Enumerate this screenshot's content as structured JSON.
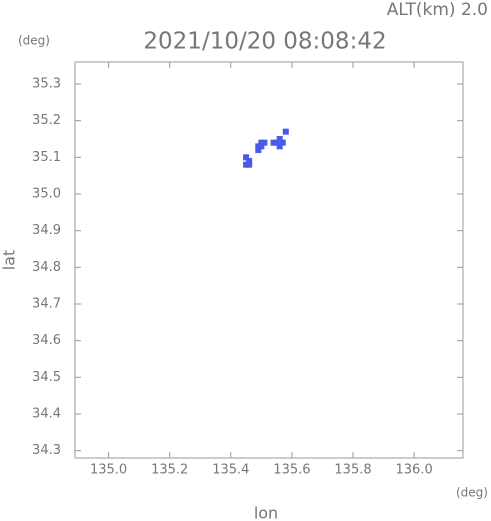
{
  "chart_data": {
    "type": "scatter",
    "title": "2021/10/20 08:08:42",
    "subtitle": "ALT(km) 2.0",
    "x_unit": "(deg)",
    "y_unit": "(deg)",
    "x_label": "lon",
    "y_label": "lat",
    "x": [
      135.45,
      135.46,
      135.45,
      135.46,
      135.49,
      135.5,
      135.51,
      135.5,
      135.49,
      135.54,
      135.55,
      135.56,
      135.57,
      135.56,
      135.58
    ],
    "y": [
      35.08,
      35.09,
      35.1,
      35.08,
      35.12,
      35.13,
      35.14,
      35.14,
      35.13,
      35.14,
      35.14,
      35.13,
      35.14,
      35.15,
      35.17
    ],
    "color": "#4a5ae6",
    "xlim": [
      134.89,
      136.16
    ],
    "ylim": [
      34.28,
      35.36
    ],
    "xticks": [
      {
        "value": 135.0,
        "label": "135.0"
      },
      135.2,
      135.4,
      135.6,
      135.8,
      {
        "value": 136.0,
        "label": "136.0"
      }
    ],
    "yticks": [
      {
        "value": 34.3,
        "label": "34.3"
      },
      {
        "value": 34.4,
        "label": "34.4"
      },
      {
        "value": 34.5,
        "label": "34.5"
      },
      {
        "value": 34.6,
        "label": "34.6"
      },
      {
        "value": 34.7,
        "label": "34.7"
      },
      {
        "value": 34.8,
        "label": "34.8"
      },
      {
        "value": 34.9,
        "label": "34.9"
      },
      {
        "value": 35.0,
        "label": "35.0"
      },
      {
        "value": 35.1,
        "label": "35.1"
      },
      {
        "value": 35.2,
        "label": "35.2"
      },
      {
        "value": 35.3,
        "label": "35.3"
      }
    ]
  }
}
